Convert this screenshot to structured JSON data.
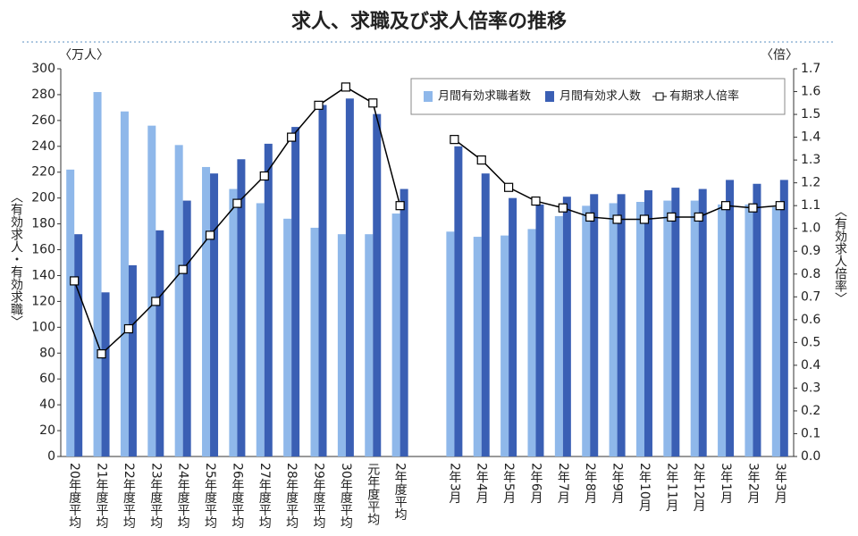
{
  "chart_data": {
    "type": "bar_line",
    "title": "求人、求職及び求人倍率の推移",
    "y_unit_label": "〈万人〉",
    "y_label": "〈有効求人・有効求職〉",
    "y2_unit_label": "〈倍〉",
    "y2_label": "〈有効求人倍率〉",
    "categories": [
      "20年度平均",
      "21年度平均",
      "22年度平均",
      "23年度平均",
      "24年度平均",
      "25年度平均",
      "26年度平均",
      "27年度平均",
      "28年度平均",
      "29年度平均",
      "30年度平均",
      "元年度平均",
      "2年度平均",
      null,
      "2年3月",
      "2年4月",
      "2年5月",
      "2年6月",
      "2年7月",
      "2年8月",
      "2年9月",
      "2年10月",
      "2年11月",
      "2年12月",
      "3年1月",
      "3年2月",
      "3年3月"
    ],
    "series": [
      {
        "name": "月間有効求職者数",
        "type": "bar",
        "color": "#8fb8ea",
        "values": [
          222,
          282,
          267,
          256,
          241,
          224,
          207,
          196,
          184,
          177,
          172,
          172,
          188,
          null,
          174,
          170,
          171,
          176,
          186,
          194,
          196,
          197,
          198,
          198,
          195,
          195,
          193
        ]
      },
      {
        "name": "月間有効求人数",
        "type": "bar",
        "color": "#3a5fb4",
        "values": [
          172,
          127,
          148,
          175,
          198,
          219,
          230,
          242,
          255,
          272,
          277,
          265,
          207,
          null,
          240,
          219,
          200,
          195,
          201,
          203,
          203,
          206,
          208,
          207,
          214,
          211,
          214
        ]
      },
      {
        "name": "有期求人倍率",
        "type": "line",
        "axis": "y2",
        "color": "#000000",
        "values": [
          0.77,
          0.45,
          0.56,
          0.68,
          0.82,
          0.97,
          1.11,
          1.23,
          1.4,
          1.54,
          1.62,
          1.55,
          1.1,
          null,
          1.39,
          1.3,
          1.18,
          1.12,
          1.09,
          1.05,
          1.04,
          1.04,
          1.05,
          1.05,
          1.1,
          1.09,
          1.1
        ]
      }
    ],
    "ylim": [
      0,
      300
    ],
    "yticks": [
      0,
      20,
      40,
      60,
      80,
      100,
      120,
      140,
      160,
      180,
      200,
      220,
      240,
      260,
      280,
      300
    ],
    "y2lim": [
      0,
      1.7
    ],
    "y2ticks": [
      {
        "value": 0,
        "label": "0.0"
      },
      0.1,
      0.2,
      0.3,
      0.4,
      0.5,
      0.6,
      0.7,
      0.8,
      0.9,
      {
        "value": 1,
        "label": "1.0"
      },
      1.1,
      1.2,
      1.3,
      1.4,
      1.5,
      1.6,
      1.7
    ],
    "legend": "upper right"
  }
}
